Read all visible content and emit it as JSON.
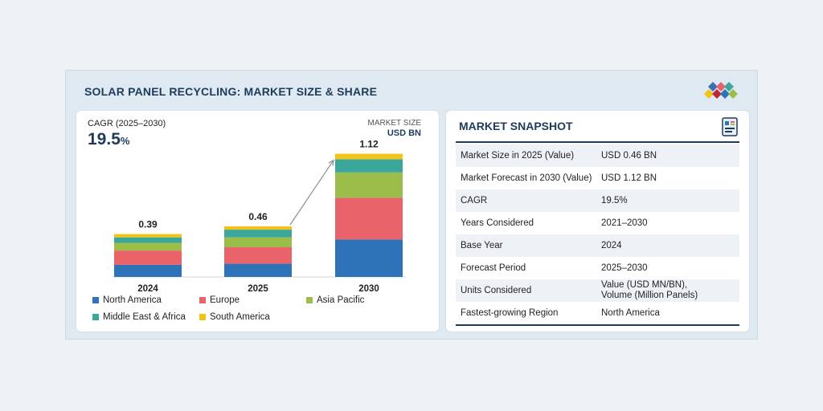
{
  "header": {
    "title": "SOLAR PANEL RECYCLING: MARKET SIZE & SHARE"
  },
  "cagr": {
    "label": "CAGR (2025–2030)",
    "value": "19.5",
    "unit": "%"
  },
  "market_size_unit": {
    "line1": "MARKET SIZE",
    "line2": "USD BN"
  },
  "chart_data": {
    "type": "bar",
    "stacked": true,
    "categories": [
      "2024",
      "2025",
      "2030"
    ],
    "totals": [
      0.39,
      0.46,
      1.12
    ],
    "total_labels": [
      "0.39",
      "0.46",
      "1.12"
    ],
    "series": [
      {
        "name": "North America",
        "color": "#2e72b8",
        "values": [
          0.11,
          0.12,
          0.34
        ]
      },
      {
        "name": "Europe",
        "color": "#e9646a",
        "values": [
          0.13,
          0.15,
          0.38
        ]
      },
      {
        "name": "Asia Pacific",
        "color": "#9bbd4a",
        "values": [
          0.07,
          0.09,
          0.23
        ]
      },
      {
        "name": "Middle East & Africa",
        "color": "#3aa79a",
        "values": [
          0.05,
          0.07,
          0.12
        ]
      },
      {
        "name": "South America",
        "color": "#f2c419",
        "values": [
          0.03,
          0.03,
          0.05
        ]
      }
    ],
    "legend_position": "bottom",
    "grid": false
  },
  "snapshot": {
    "title": "MARKET SNAPSHOT",
    "rows": [
      {
        "key": "Market Size in 2025 (Value)",
        "value": "USD 0.46 BN"
      },
      {
        "key": "Market Forecast in 2030 (Value)",
        "value": "USD 1.12 BN"
      },
      {
        "key": "CAGR",
        "value": "19.5%"
      },
      {
        "key": "Years Considered",
        "value": "2021–2030"
      },
      {
        "key": "Base Year",
        "value": "2024"
      },
      {
        "key": "Forecast Period",
        "value": "2025–2030"
      },
      {
        "key": "Units Considered",
        "value": "Value (USD MN/BN),\nVolume (Million Panels)"
      },
      {
        "key": "Fastest-growing Region",
        "value": "North America"
      }
    ]
  },
  "icons": {
    "logo": "markets-logo-icon",
    "snapshot": "report-icon"
  }
}
